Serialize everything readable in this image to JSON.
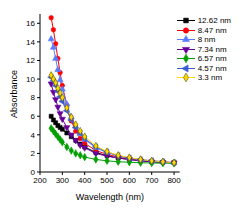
{
  "chart_data": {
    "type": "line",
    "x_label": "Wavelength (nm)",
    "y_label": "Absorbance",
    "xlim": [
      200,
      825
    ],
    "xticks": [
      200,
      300,
      400,
      500,
      600,
      700,
      800
    ],
    "ylim": [
      0,
      17
    ],
    "yticks": [
      0,
      2,
      4,
      6,
      8,
      10,
      12,
      14,
      16
    ],
    "grid": false,
    "legend": "upper right",
    "x": [
      250,
      260,
      270,
      280,
      290,
      300,
      320,
      340,
      360,
      380,
      400,
      450,
      500,
      550,
      600,
      650,
      700,
      750,
      800
    ],
    "series": [
      {
        "name": "12.62 nm",
        "color": "#000000",
        "marker": "square",
        "values": [
          6.0,
          5.6,
          5.3,
          5.0,
          4.8,
          4.6,
          4.2,
          3.8,
          3.4,
          3.0,
          2.7,
          2.1,
          1.75,
          1.5,
          1.35,
          1.2,
          1.1,
          1.05,
          1.0
        ]
      },
      {
        "name": "8.47 nm",
        "color": "#ff0000",
        "marker": "circle",
        "values": [
          16.6,
          15.3,
          13.8,
          12.2,
          10.7,
          9.3,
          7.2,
          5.5,
          4.4,
          3.6,
          3.1,
          2.3,
          1.9,
          1.6,
          1.4,
          1.25,
          1.15,
          1.05,
          1.0
        ]
      },
      {
        "name": "8 nm",
        "color": "#5b7cff",
        "marker": "triangle-up",
        "values": [
          14.3,
          13.4,
          12.2,
          11.0,
          9.9,
          8.9,
          7.3,
          5.9,
          4.9,
          4.1,
          3.5,
          2.6,
          2.1,
          1.75,
          1.5,
          1.35,
          1.2,
          1.1,
          1.0
        ]
      },
      {
        "name": "7.34 nm",
        "color": "#660099",
        "marker": "triangle-down",
        "values": [
          9.5,
          8.6,
          7.8,
          7.0,
          6.3,
          5.7,
          4.8,
          4.0,
          3.4,
          2.9,
          2.6,
          2.0,
          1.7,
          1.5,
          1.35,
          1.2,
          1.1,
          1.05,
          1.0
        ]
      },
      {
        "name": "6.57 nm",
        "color": "#00a000",
        "marker": "diamond",
        "values": [
          4.7,
          4.4,
          4.1,
          3.8,
          3.5,
          3.2,
          2.7,
          2.3,
          2.0,
          1.8,
          1.6,
          1.35,
          1.2,
          1.1,
          1.05,
          1.0,
          0.97,
          0.95,
          0.93
        ]
      },
      {
        "name": "4.57 nm",
        "color": "#3d5bd6",
        "marker": "triangle-left",
        "values": [
          10.2,
          9.8,
          9.3,
          8.7,
          8.1,
          7.6,
          6.6,
          5.6,
          4.8,
          4.2,
          3.6,
          2.7,
          2.15,
          1.75,
          1.5,
          1.3,
          1.2,
          1.1,
          1.0
        ]
      },
      {
        "name": "3.3 nm",
        "color": "#ffd800",
        "marker": "diamond",
        "values": [
          10.4,
          10.0,
          9.6,
          9.0,
          8.5,
          8.0,
          6.9,
          5.9,
          5.1,
          4.4,
          3.8,
          2.8,
          2.2,
          1.8,
          1.55,
          1.35,
          1.2,
          1.1,
          1.0
        ]
      }
    ]
  }
}
